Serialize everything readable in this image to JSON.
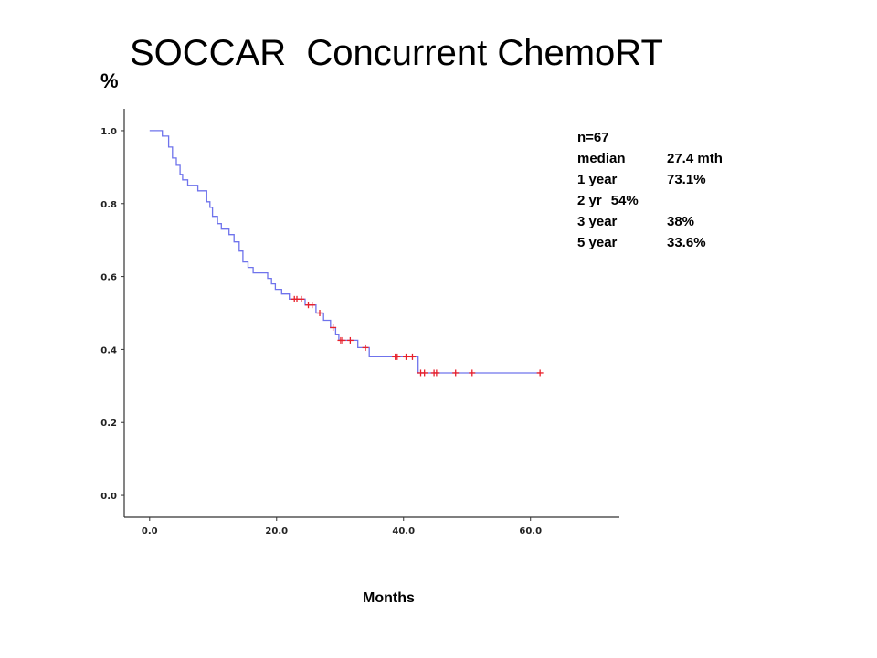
{
  "slide": {
    "title": "SOCCAR  Concurrent ChemoRT"
  },
  "stats_box": {
    "rows": [
      {
        "label": "n=67",
        "value": ""
      },
      {
        "label": "median",
        "value": "27.4 mth"
      },
      {
        "label": "1 year",
        "value": "73.1%"
      },
      {
        "label": "2 yr",
        "value": "54%",
        "inline": true
      },
      {
        "label": "3 year",
        "value": "38%"
      },
      {
        "label": "5 year",
        "value": "33.6%"
      }
    ]
  },
  "chart_data": {
    "type": "line",
    "subtype": "kaplan-meier step curve",
    "title": "SOCCAR  Concurrent ChemoRT",
    "xlabel": "Months",
    "ylabel": "%",
    "xlim": [
      -4,
      74
    ],
    "ylim": [
      -0.06,
      1.06
    ],
    "x_ticks": [
      0,
      20,
      40,
      60
    ],
    "x_tick_labels": [
      "0.0",
      "20.0",
      "40.0",
      "60.0"
    ],
    "y_ticks": [
      0,
      0.2,
      0.4,
      0.6,
      0.8,
      1.0
    ],
    "y_tick_labels": [
      "0.0",
      "0.2",
      "0.4",
      "0.6",
      "0.8",
      "1.0"
    ],
    "grid": false,
    "colors": {
      "curve": "#6f73ec",
      "censor": "#e8202a",
      "axis": "#333333"
    },
    "series": [
      {
        "name": "",
        "step_points": [
          [
            0,
            1.0
          ],
          [
            2.0,
            1.0
          ],
          [
            2.0,
            0.985
          ],
          [
            3.0,
            0.985
          ],
          [
            3.0,
            0.955
          ],
          [
            3.6,
            0.955
          ],
          [
            3.6,
            0.925
          ],
          [
            4.2,
            0.925
          ],
          [
            4.2,
            0.905
          ],
          [
            4.8,
            0.905
          ],
          [
            4.8,
            0.88
          ],
          [
            5.2,
            0.88
          ],
          [
            5.2,
            0.865
          ],
          [
            6.0,
            0.865
          ],
          [
            6.0,
            0.85
          ],
          [
            7.6,
            0.85
          ],
          [
            7.6,
            0.835
          ],
          [
            9.0,
            0.835
          ],
          [
            9.0,
            0.805
          ],
          [
            9.5,
            0.805
          ],
          [
            9.5,
            0.79
          ],
          [
            9.9,
            0.79
          ],
          [
            9.9,
            0.765
          ],
          [
            10.7,
            0.765
          ],
          [
            10.7,
            0.745
          ],
          [
            11.3,
            0.745
          ],
          [
            11.3,
            0.73
          ],
          [
            12.5,
            0.73
          ],
          [
            12.5,
            0.715
          ],
          [
            13.3,
            0.715
          ],
          [
            13.3,
            0.695
          ],
          [
            14.1,
            0.695
          ],
          [
            14.1,
            0.67
          ],
          [
            14.7,
            0.67
          ],
          [
            14.7,
            0.64
          ],
          [
            15.5,
            0.64
          ],
          [
            15.5,
            0.625
          ],
          [
            16.3,
            0.625
          ],
          [
            16.3,
            0.61
          ],
          [
            18.6,
            0.61
          ],
          [
            18.6,
            0.595
          ],
          [
            19.2,
            0.595
          ],
          [
            19.2,
            0.58
          ],
          [
            19.8,
            0.58
          ],
          [
            19.8,
            0.565
          ],
          [
            20.8,
            0.565
          ],
          [
            20.8,
            0.552
          ],
          [
            22.0,
            0.552
          ],
          [
            22.0,
            0.538
          ],
          [
            24.5,
            0.538
          ],
          [
            24.5,
            0.522
          ],
          [
            26.2,
            0.522
          ],
          [
            26.2,
            0.5
          ],
          [
            27.4,
            0.5
          ],
          [
            27.4,
            0.48
          ],
          [
            28.5,
            0.48
          ],
          [
            28.5,
            0.46
          ],
          [
            29.3,
            0.46
          ],
          [
            29.3,
            0.44
          ],
          [
            29.8,
            0.44
          ],
          [
            29.8,
            0.425
          ],
          [
            32.8,
            0.425
          ],
          [
            32.8,
            0.405
          ],
          [
            34.6,
            0.405
          ],
          [
            34.6,
            0.38
          ],
          [
            42.3,
            0.38
          ],
          [
            42.3,
            0.336
          ],
          [
            61.5,
            0.336
          ]
        ],
        "censored": [
          [
            22.8,
            0.538
          ],
          [
            23.2,
            0.538
          ],
          [
            23.9,
            0.538
          ],
          [
            25.0,
            0.522
          ],
          [
            25.6,
            0.522
          ],
          [
            26.8,
            0.5
          ],
          [
            28.9,
            0.46
          ],
          [
            30.1,
            0.425
          ],
          [
            30.4,
            0.425
          ],
          [
            31.6,
            0.425
          ],
          [
            34.0,
            0.405
          ],
          [
            38.7,
            0.38
          ],
          [
            39.0,
            0.38
          ],
          [
            40.4,
            0.38
          ],
          [
            41.4,
            0.38
          ],
          [
            42.7,
            0.336
          ],
          [
            43.3,
            0.336
          ],
          [
            44.8,
            0.336
          ],
          [
            45.2,
            0.336
          ],
          [
            48.2,
            0.336
          ],
          [
            50.8,
            0.336
          ],
          [
            61.5,
            0.336
          ]
        ]
      }
    ]
  }
}
